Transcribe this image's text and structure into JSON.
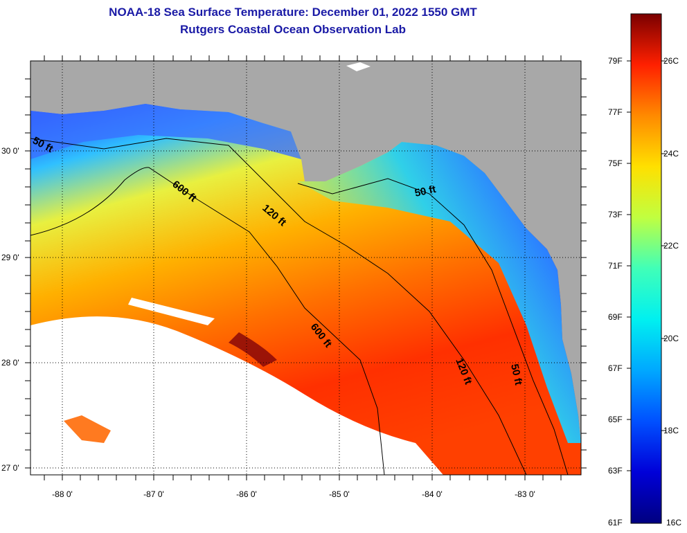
{
  "title_line1": "NOAA-18 Sea Surface Temperature:  December 01, 2022 1550 GMT",
  "title_line2": "Rutgers Coastal Ocean Observation Lab",
  "map": {
    "lat_labels": [
      "30 0'",
      "29 0'",
      "28 0'",
      "27 0'"
    ],
    "lon_labels": [
      "-88 0'",
      "-87 0'",
      "-86 0'",
      "-85 0'",
      "-84 0'",
      "-83 0'"
    ],
    "depth_labels": [
      "50 ft",
      "600 ft",
      "120 ft",
      "50 ft",
      "600 ft",
      "120 ft",
      "50 ft"
    ],
    "colors": {
      "land": "#a8a8a8",
      "frame": "#000000"
    }
  },
  "colorbar": {
    "fahrenheit_labels": [
      "79F",
      "77F",
      "75F",
      "73F",
      "71F",
      "69F",
      "67F",
      "65F",
      "63F",
      "61F"
    ],
    "celsius_labels": [
      "26C",
      "24C",
      "22C",
      "20C",
      "18C",
      "16C"
    ],
    "range_c": [
      16,
      27
    ]
  }
}
